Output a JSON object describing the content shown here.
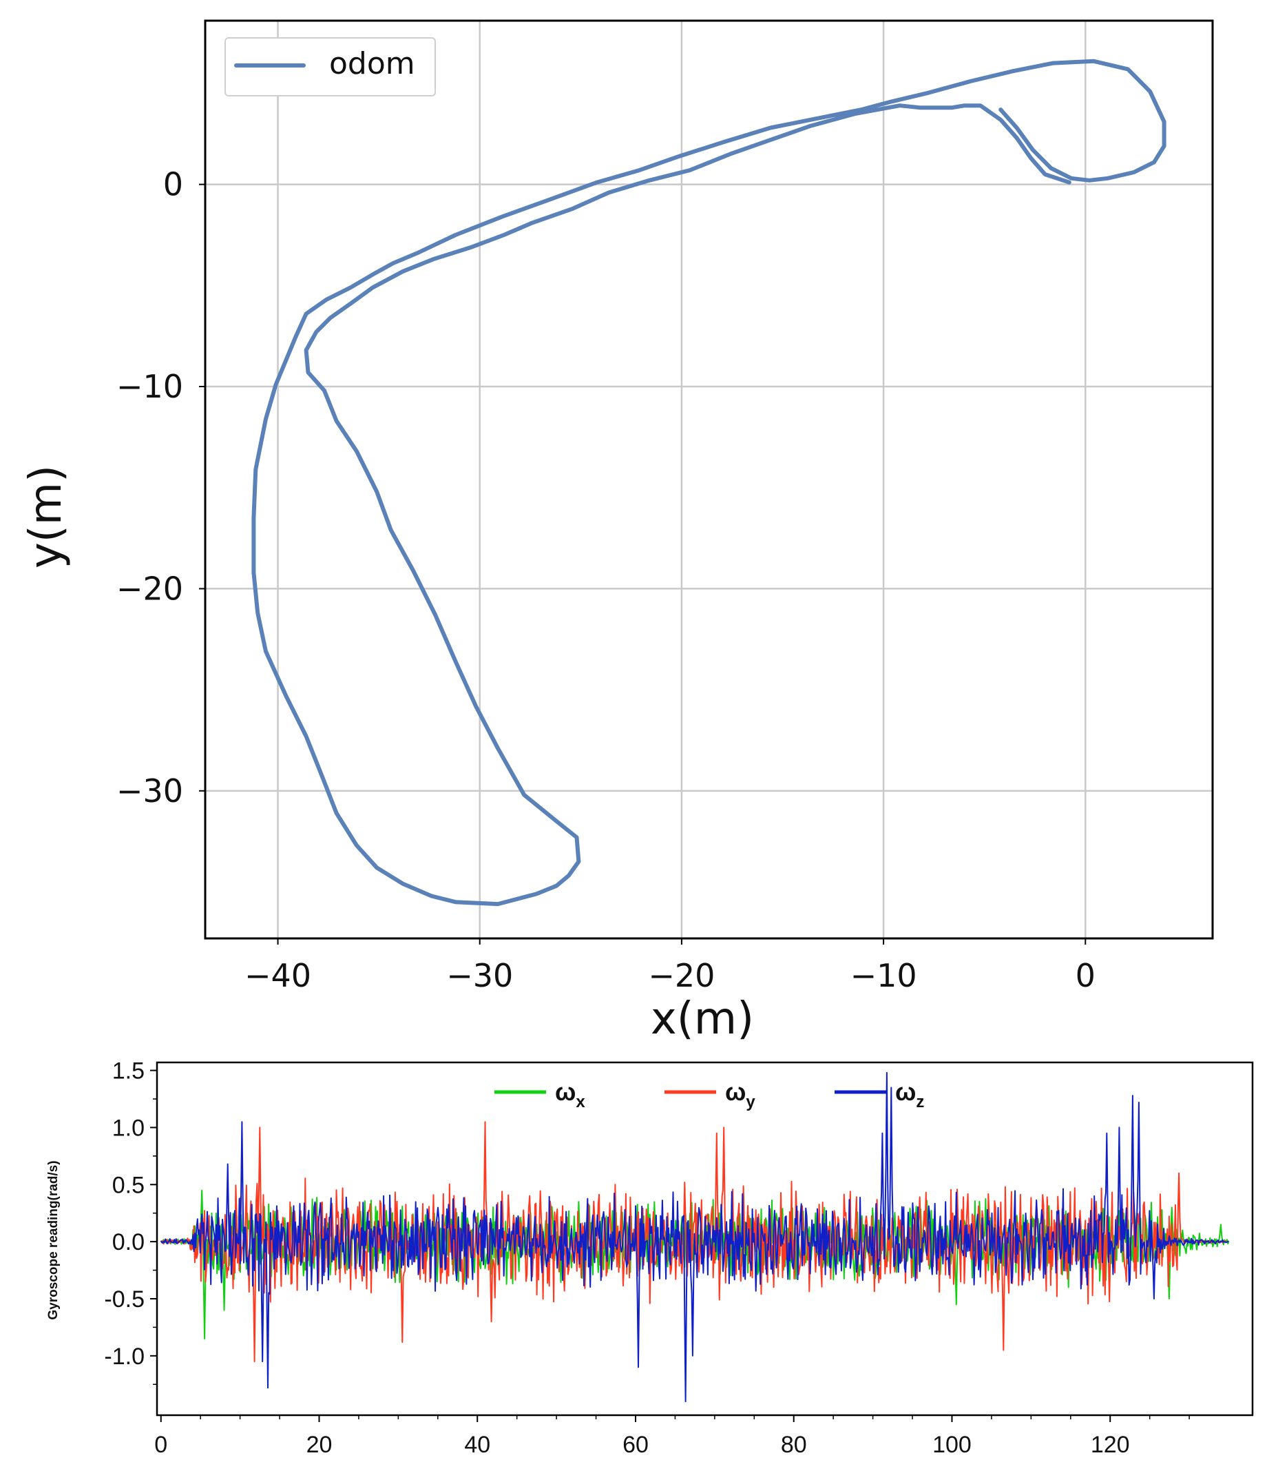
{
  "chart_data": [
    {
      "type": "line",
      "xlabel": "x(m)",
      "ylabel": "y(m)",
      "xlim": [
        -43.6,
        6.3
      ],
      "ylim": [
        -37.3,
        8.1
      ],
      "xticks": [
        -40,
        -30,
        -20,
        -10,
        0
      ],
      "yticks": [
        0,
        -10,
        -20,
        -30
      ],
      "xtick_labels": [
        "−40",
        "−30",
        "−20",
        "−10",
        "0"
      ],
      "ytick_labels": [
        "0",
        "−10",
        "−20",
        "−30"
      ],
      "grid": true,
      "legend": {
        "position": "top-left",
        "entries": [
          "odom"
        ]
      },
      "colors": {
        "odom": "#5a82b8"
      },
      "series": [
        {
          "name": "odom",
          "x": [
            -0.8,
            -2,
            -2.7,
            -3.4,
            -4.2,
            -5.2,
            -6,
            -6.6,
            -7.2,
            -8.2,
            -9.2,
            -11.4,
            -13.6,
            -15.6,
            -17.6,
            -19.6,
            -21.6,
            -23.6,
            -25.4,
            -27.4,
            -28.8,
            -30.4,
            -32.3,
            -33.8,
            -35.3,
            -36.4,
            -37.4,
            -38.1,
            -38.6,
            -38.5,
            -37.7,
            -37.1,
            -36.1,
            -35.1,
            -34.4,
            -33.3,
            -32.2,
            -31.2,
            -30.2,
            -29.1,
            -27.8,
            -26.2,
            -25.2,
            -25.1,
            -25.6,
            -26.2,
            -27.2,
            -29.1,
            -31.2,
            -32.4,
            -33.8,
            -35.1,
            -36.1,
            -37.1,
            -37.8,
            -38.6,
            -39.6,
            -40.6,
            -41,
            -41.2,
            -41.2,
            -41.1,
            -40.6,
            -40.1,
            -39.6,
            -39.1,
            -38.6,
            -37.6,
            -36.4,
            -35.2,
            -34.3,
            -33.1,
            -31.2,
            -28.9,
            -26.4,
            -24.2,
            -22.1,
            -20.1,
            -17.9,
            -15.6,
            -13.1,
            -11.1,
            -9.6,
            -7.9,
            -5.7,
            -3.6,
            -1.6,
            0.4,
            2.1,
            3.2,
            3.9,
            3.9,
            3.4,
            2.4,
            1.1,
            0.2,
            -0.7,
            -1.7,
            -2.6,
            -3.4,
            -4.2
          ],
          "y": [
            0.1,
            0.5,
            1.3,
            2.3,
            3.2,
            3.9,
            3.9,
            3.8,
            3.8,
            3.8,
            3.9,
            3.5,
            2.9,
            2.2,
            1.5,
            0.7,
            0.2,
            -0.4,
            -1.2,
            -1.9,
            -2.5,
            -3.1,
            -3.7,
            -4.3,
            -5.1,
            -5.9,
            -6.6,
            -7.3,
            -8.2,
            -9.3,
            -10.2,
            -11.7,
            -13.2,
            -15.2,
            -17.1,
            -19.1,
            -21.3,
            -23.6,
            -25.8,
            -27.9,
            -30.2,
            -31.5,
            -32.3,
            -33.5,
            -34.2,
            -34.7,
            -35.1,
            -35.6,
            -35.5,
            -35.2,
            -34.6,
            -33.8,
            -32.7,
            -31.1,
            -29.3,
            -27.3,
            -25.3,
            -23.1,
            -21.2,
            -19.2,
            -16.5,
            -14.1,
            -11.6,
            -9.9,
            -8.7,
            -7.5,
            -6.4,
            -5.7,
            -5.1,
            -4.4,
            -3.9,
            -3.4,
            -2.5,
            -1.6,
            -0.7,
            0.1,
            0.7,
            1.4,
            2.1,
            2.8,
            3.3,
            3.7,
            4.1,
            4.5,
            5.1,
            5.6,
            6.0,
            6.1,
            5.7,
            4.6,
            3.1,
            1.9,
            1.1,
            0.6,
            0.3,
            0.2,
            0.3,
            0.8,
            1.7,
            2.8,
            3.7
          ]
        }
      ]
    },
    {
      "type": "line",
      "xlabel": "",
      "ylabel": "Gyroscope reading(rad/s)",
      "xlim": [
        -0.5,
        138
      ],
      "ylim": [
        -1.52,
        1.57
      ],
      "xticks": [
        0,
        20,
        40,
        60,
        80,
        100,
        120
      ],
      "yticks": [
        1.5,
        1.0,
        0.5,
        0.0,
        -0.5,
        -1.0
      ],
      "xtick_labels": [
        "0",
        "20",
        "40",
        "60",
        "80",
        "100",
        "120"
      ],
      "ytick_labels": [
        "1.5",
        "1.0",
        "0.5",
        "0.0",
        "-0.5",
        "-1.0"
      ],
      "grid": false,
      "legend": {
        "position": "top-center",
        "entries": [
          "ωx",
          "ωy",
          "ωz"
        ]
      },
      "colors": {
        "wx": "#10d010",
        "wy": "#ff3a20",
        "wz": "#1020c8"
      },
      "sample_count": 1200,
      "t_range": [
        0,
        135
      ],
      "series": [
        {
          "name": "ωx",
          "label_main": "ω",
          "label_sub": "x",
          "envelope_t": [
            0,
            3.5,
            5,
            10,
            20,
            40,
            60,
            70,
            80,
            100,
            120,
            126,
            128,
            129.5,
            131,
            133,
            135
          ],
          "envelope_amp": [
            0.02,
            0.03,
            0.3,
            0.38,
            0.35,
            0.33,
            0.34,
            0.33,
            0.34,
            0.33,
            0.35,
            0.3,
            0.22,
            0.1,
            0.07,
            0.05,
            0.02
          ],
          "peaks": [
            {
              "t": 5.5,
              "v": -0.85
            },
            {
              "t": 5.2,
              "v": 0.45
            },
            {
              "t": 8,
              "v": -0.6
            },
            {
              "t": 100.6,
              "v": -0.55
            },
            {
              "t": 127.5,
              "v": -0.5
            },
            {
              "t": 127.8,
              "v": 0.3
            },
            {
              "t": 134,
              "v": 0.15
            }
          ]
        },
        {
          "name": "ωy",
          "label_main": "ω",
          "label_sub": "y",
          "envelope_t": [
            0,
            3.5,
            5,
            10,
            20,
            40,
            60,
            70,
            80,
            100,
            120,
            126,
            128.5,
            129.2,
            135
          ],
          "envelope_amp": [
            0.02,
            0.03,
            0.38,
            0.5,
            0.48,
            0.48,
            0.47,
            0.46,
            0.45,
            0.47,
            0.5,
            0.45,
            0.3,
            0.02,
            0.01
          ],
          "peaks": [
            {
              "t": 12.5,
              "v": 1.0
            },
            {
              "t": 11.8,
              "v": -1.05
            },
            {
              "t": 41,
              "v": 1.05
            },
            {
              "t": 41.8,
              "v": -0.7
            },
            {
              "t": 30.5,
              "v": -0.88
            },
            {
              "t": 70.3,
              "v": 0.95
            },
            {
              "t": 71.2,
              "v": 1.0
            },
            {
              "t": 106.5,
              "v": -0.95
            },
            {
              "t": 128.6,
              "v": -0.55
            },
            {
              "t": 128.7,
              "v": 0.6
            }
          ]
        },
        {
          "name": "ωz",
          "label_main": "ω",
          "label_sub": "z",
          "envelope_t": [
            0,
            3.5,
            5,
            10,
            20,
            40,
            60,
            70,
            80,
            90,
            95,
            100,
            110,
            120,
            124,
            126.5,
            128,
            135
          ],
          "envelope_amp": [
            0.02,
            0.03,
            0.3,
            0.42,
            0.4,
            0.38,
            0.38,
            0.4,
            0.4,
            0.38,
            0.38,
            0.37,
            0.4,
            0.42,
            0.5,
            0.25,
            0.04,
            0.01
          ],
          "peaks": [
            {
              "t": 10.3,
              "v": 1.05
            },
            {
              "t": 13.5,
              "v": -1.28
            },
            {
              "t": 12.8,
              "v": -1.05
            },
            {
              "t": 8.5,
              "v": 0.68
            },
            {
              "t": 60.3,
              "v": -1.1
            },
            {
              "t": 66.3,
              "v": -1.4
            },
            {
              "t": 67.2,
              "v": -1.0
            },
            {
              "t": 91.8,
              "v": 1.48
            },
            {
              "t": 92.3,
              "v": 1.35
            },
            {
              "t": 91.2,
              "v": 0.95
            },
            {
              "t": 122.8,
              "v": 1.28
            },
            {
              "t": 123.6,
              "v": 1.22
            },
            {
              "t": 121.2,
              "v": 1.0
            },
            {
              "t": 119.6,
              "v": 0.95
            },
            {
              "t": 125.5,
              "v": -0.5
            }
          ]
        }
      ]
    }
  ]
}
